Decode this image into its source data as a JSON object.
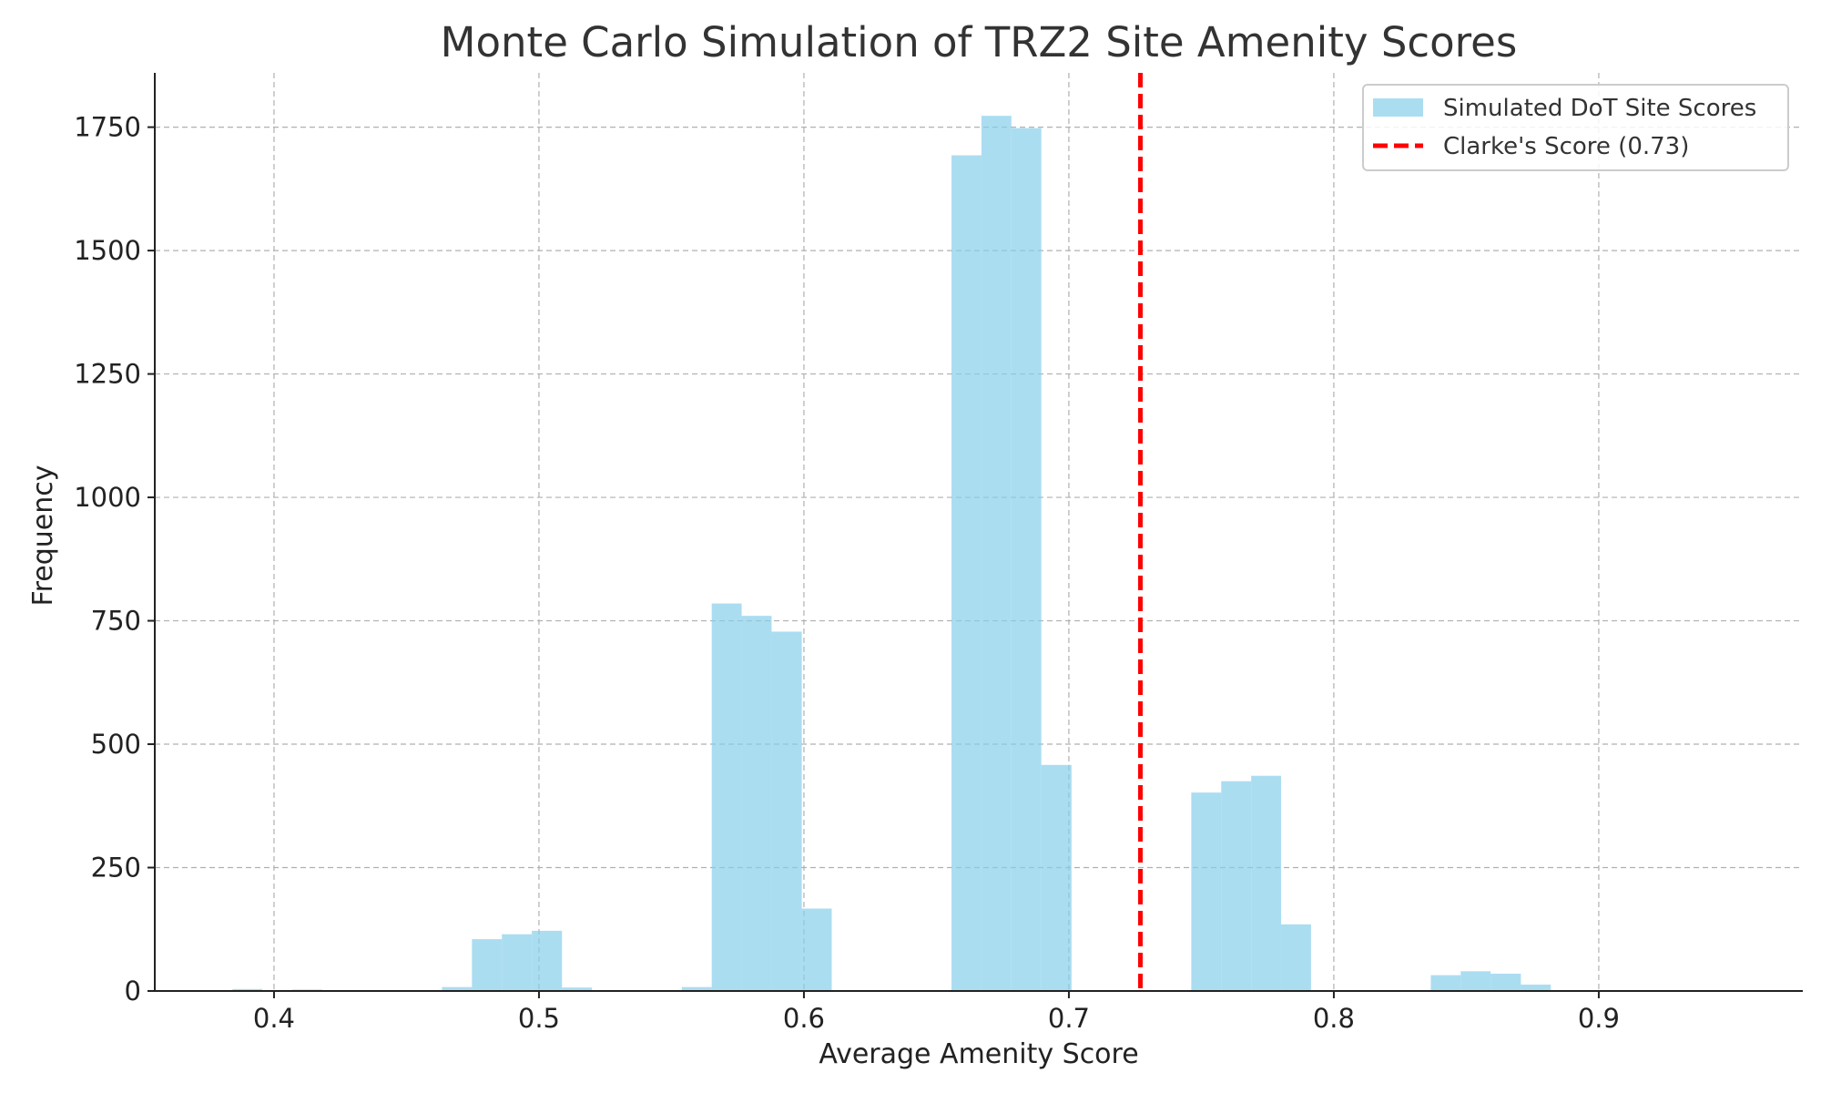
{
  "chart_data": {
    "type": "histogram",
    "title": "Monte Carlo Simulation of TRZ2 Site Amenity Scores",
    "xlabel": "Average Amenity Score",
    "ylabel": "Frequency",
    "xlim": [
      0.355,
      0.977
    ],
    "ylim": [
      0,
      1860
    ],
    "x_ticks": [
      0.4,
      0.5,
      0.6,
      0.7,
      0.8,
      0.9
    ],
    "x_tick_labels": [
      "0.4",
      "0.5",
      "0.6",
      "0.7",
      "0.8",
      "0.9"
    ],
    "y_ticks": [
      0,
      250,
      500,
      750,
      1000,
      1250,
      1500,
      1750
    ],
    "y_tick_labels": [
      "0",
      "250",
      "500",
      "750",
      "1000",
      "1250",
      "1500",
      "1750"
    ],
    "grid": true,
    "legend_position": "top-right",
    "bin_width": 0.01131,
    "series": [
      {
        "name": "Simulated DoT Site Scores",
        "color": "#87ceeb",
        "bins": [
          {
            "start": 0.3843,
            "end": 0.3956,
            "count": 4
          },
          {
            "start": 0.3956,
            "end": 0.4069,
            "count": 2
          },
          {
            "start": 0.4069,
            "end": 0.4182,
            "count": 3
          },
          {
            "start": 0.4634,
            "end": 0.4747,
            "count": 8
          },
          {
            "start": 0.4747,
            "end": 0.486,
            "count": 105
          },
          {
            "start": 0.486,
            "end": 0.4973,
            "count": 115
          },
          {
            "start": 0.4973,
            "end": 0.5087,
            "count": 122
          },
          {
            "start": 0.5087,
            "end": 0.52,
            "count": 7
          },
          {
            "start": 0.5539,
            "end": 0.5652,
            "count": 8
          },
          {
            "start": 0.5652,
            "end": 0.5765,
            "count": 785
          },
          {
            "start": 0.5765,
            "end": 0.5878,
            "count": 760
          },
          {
            "start": 0.5878,
            "end": 0.5992,
            "count": 728
          },
          {
            "start": 0.5992,
            "end": 0.6105,
            "count": 167
          },
          {
            "start": 0.6557,
            "end": 0.667,
            "count": 1693
          },
          {
            "start": 0.667,
            "end": 0.6783,
            "count": 1773
          },
          {
            "start": 0.6783,
            "end": 0.6896,
            "count": 1748
          },
          {
            "start": 0.6896,
            "end": 0.701,
            "count": 458
          },
          {
            "start": 0.7462,
            "end": 0.7575,
            "count": 402
          },
          {
            "start": 0.7575,
            "end": 0.7688,
            "count": 425
          },
          {
            "start": 0.7688,
            "end": 0.7801,
            "count": 436
          },
          {
            "start": 0.7801,
            "end": 0.7914,
            "count": 135
          },
          {
            "start": 0.8366,
            "end": 0.8479,
            "count": 32
          },
          {
            "start": 0.8479,
            "end": 0.8592,
            "count": 40
          },
          {
            "start": 0.8592,
            "end": 0.8706,
            "count": 35
          },
          {
            "start": 0.8706,
            "end": 0.8819,
            "count": 13
          }
        ]
      },
      {
        "name": "Clarke's Score (0.73)",
        "type": "vline",
        "x": 0.727,
        "color": "#ff0000",
        "style": "dashed"
      }
    ]
  }
}
